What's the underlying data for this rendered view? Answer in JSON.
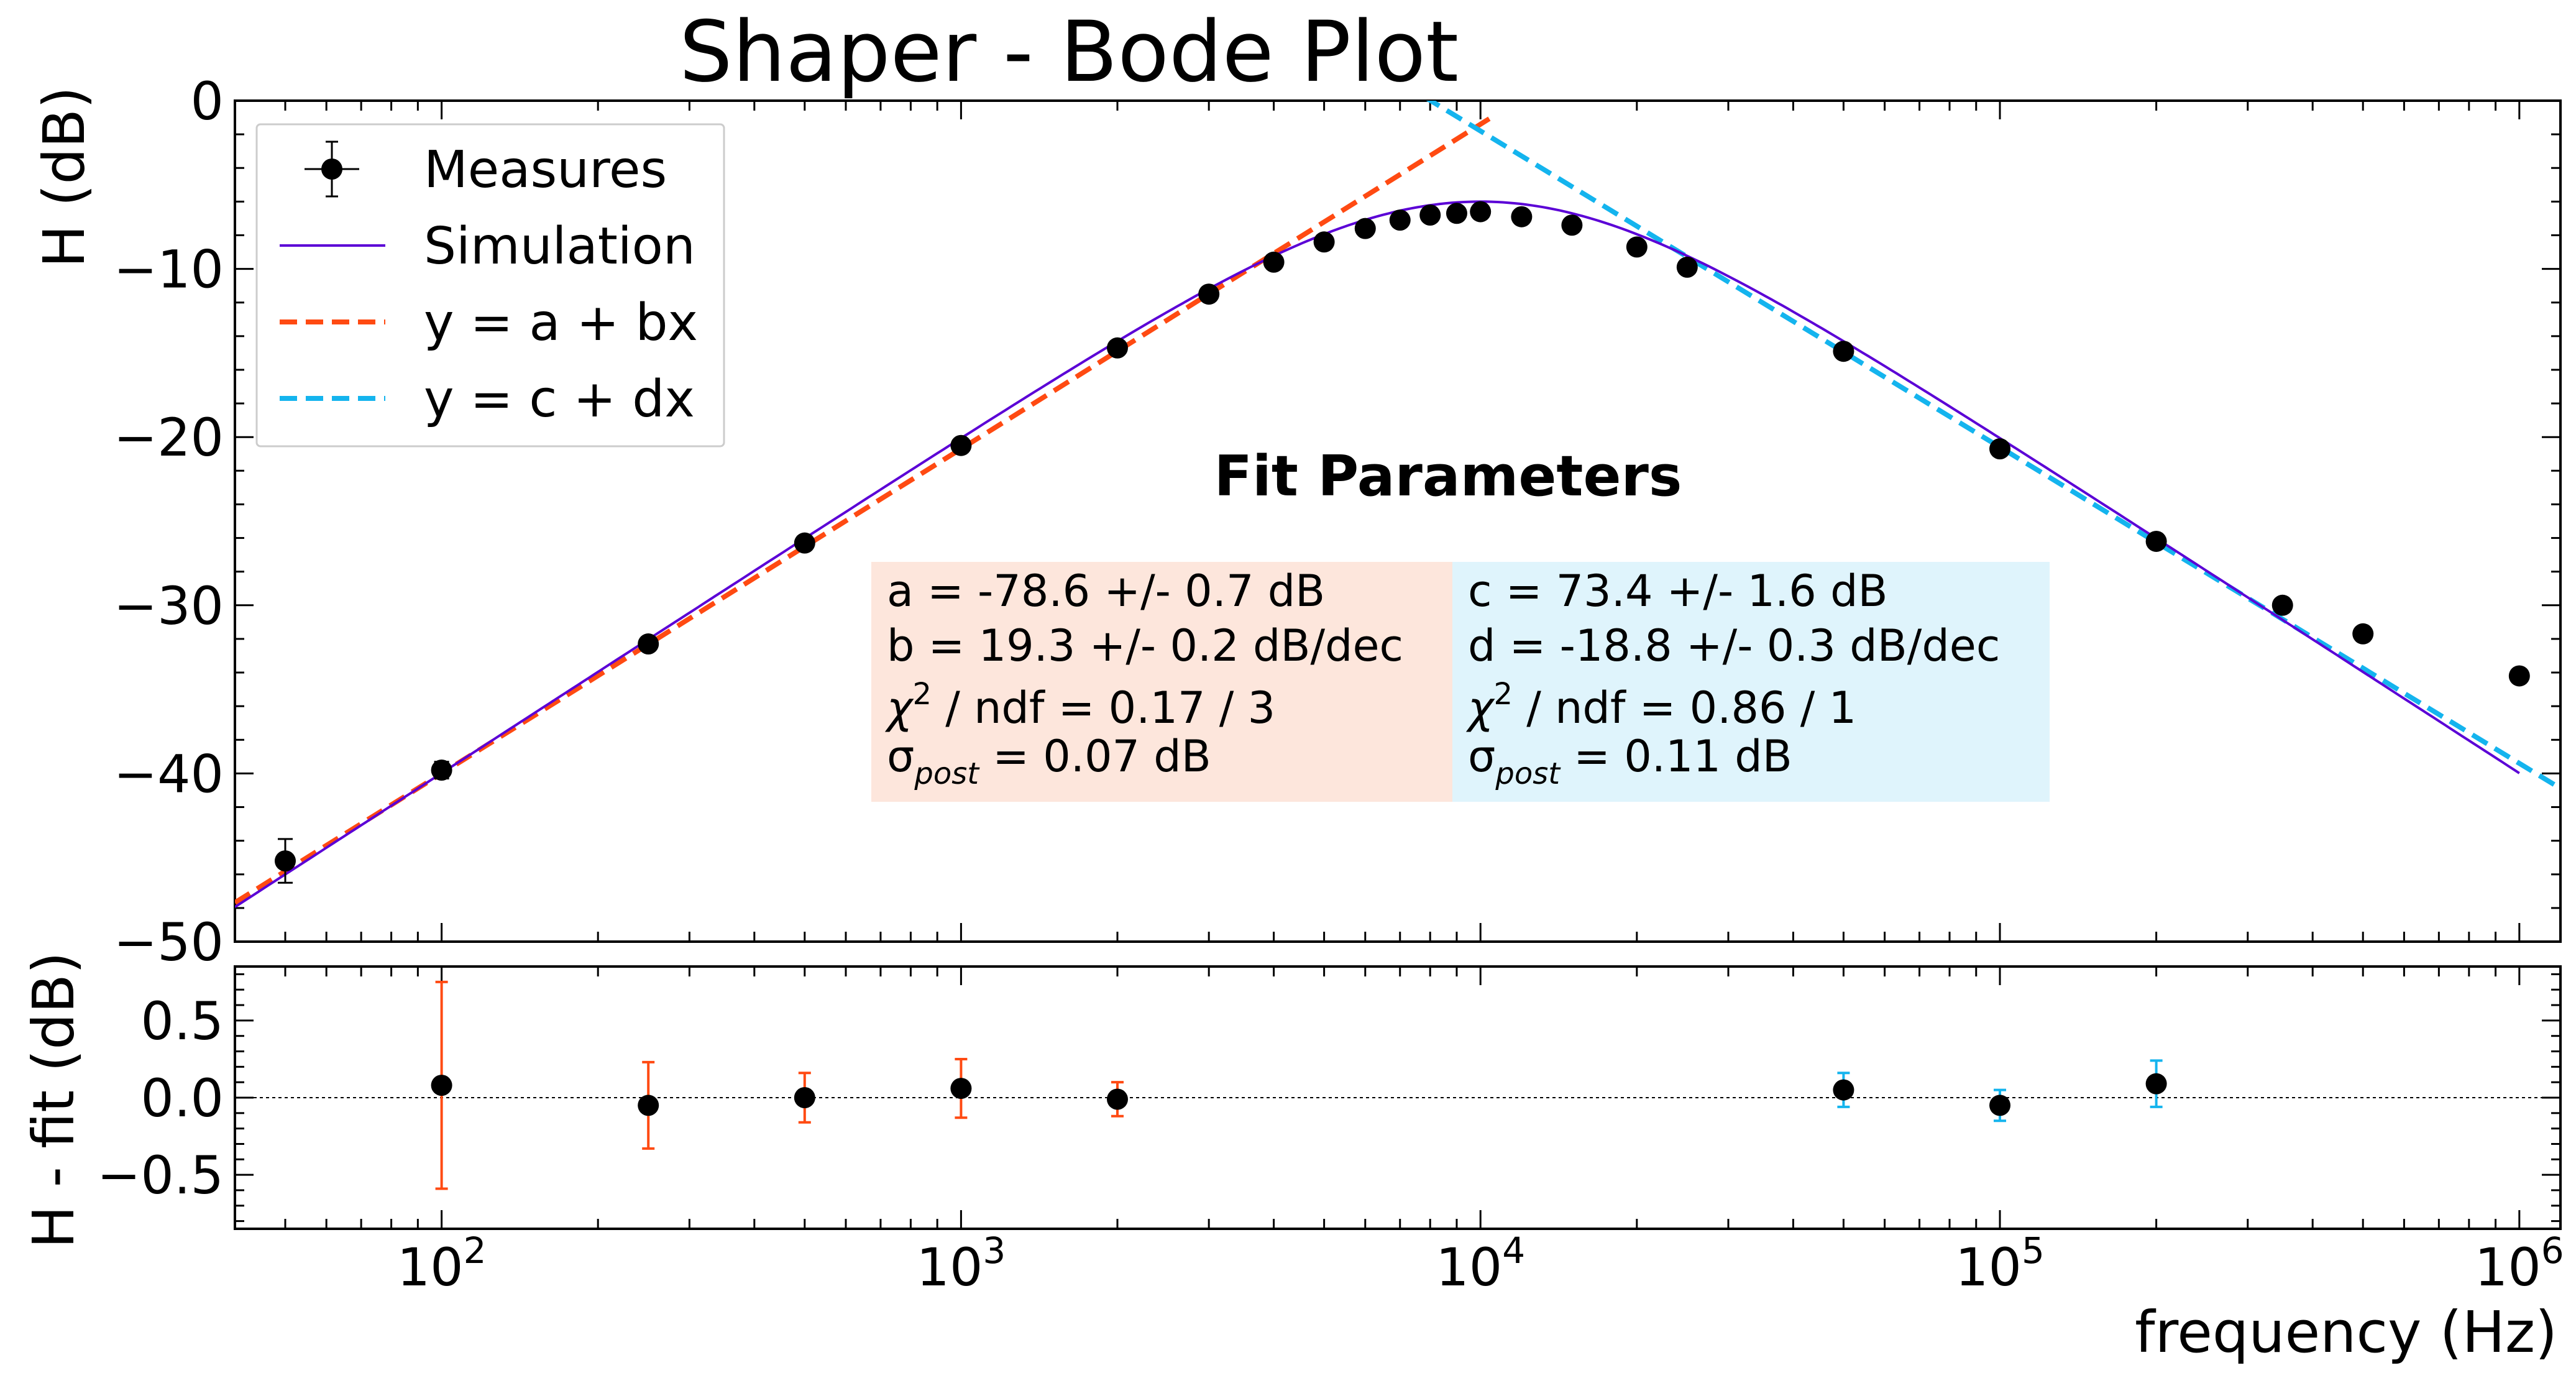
{
  "chart_data": {
    "type": "scatter",
    "title": "Shaper - Bode Plot",
    "xlabel": "frequency (Hz)",
    "xscale": "log",
    "xlim": [
      40,
      1200000
    ],
    "x_ticks": [
      {
        "value": 100,
        "base": "10",
        "exp": "2"
      },
      {
        "value": 1000,
        "base": "10",
        "exp": "3"
      },
      {
        "value": 10000,
        "base": "10",
        "exp": "4"
      },
      {
        "value": 100000,
        "base": "10",
        "exp": "5"
      },
      {
        "value": 1000000,
        "base": "10",
        "exp": "6"
      }
    ],
    "top_panel": {
      "ylabel": "H (dB)",
      "ylim": [
        -50,
        0
      ],
      "y_ticks": [
        0,
        -10,
        -20,
        -30,
        -40,
        -50
      ],
      "y_tick_labels": [
        "0",
        "−10",
        "−20",
        "−30",
        "−40",
        "−50"
      ]
    },
    "bottom_panel": {
      "ylabel": "H - fit (dB)",
      "ylim": [
        -0.85,
        0.85
      ],
      "y_ticks": [
        0.5,
        0.0,
        -0.5
      ],
      "y_tick_labels": [
        "0.5",
        "0.0",
        "−0.5"
      ],
      "zero_line": true
    },
    "legend": {
      "placement": "top-left",
      "entries": [
        {
          "label": "Measures",
          "style": "errorbar",
          "color": "#000000"
        },
        {
          "label": "Simulation",
          "style": "line",
          "color": "#5b00d6"
        },
        {
          "label": "y = a + bx",
          "style": "dashed",
          "color": "#ff4a12"
        },
        {
          "label": "y = c + dx",
          "style": "dashed",
          "color": "#14b4ee"
        }
      ]
    },
    "series": [
      {
        "name": "Measures",
        "color": "#000000",
        "x": [
          50,
          100,
          250,
          500,
          1000,
          2000,
          3000,
          4000,
          5000,
          6000,
          7000,
          8000,
          9000,
          10000,
          12000,
          15000,
          20000,
          25000,
          50000,
          100000,
          200000,
          350000,
          500000,
          1000000
        ],
        "y": [
          -45.2,
          -39.8,
          -32.3,
          -26.3,
          -20.5,
          -14.7,
          -11.5,
          -9.6,
          -8.4,
          -7.6,
          -7.1,
          -6.8,
          -6.7,
          -6.6,
          -6.9,
          -7.4,
          -8.7,
          -9.9,
          -14.9,
          -20.7,
          -26.2,
          -30.0,
          -31.7,
          -34.2
        ],
        "yerr": [
          1.3,
          0.5,
          0.25,
          0.2,
          0.15,
          0.15,
          0.15,
          0.15,
          0.15,
          0.15,
          0.15,
          0.15,
          0.15,
          0.15,
          0.15,
          0.15,
          0.15,
          0.15,
          0.15,
          0.15,
          0.15,
          0.15,
          0.15,
          0.15
        ]
      },
      {
        "name": "Simulation",
        "color": "#5b00d6",
        "model": "bandpass",
        "peak_frequency": 10000,
        "peak_gain_db": -6.0,
        "x_range": [
          40,
          1000000
        ]
      },
      {
        "name": "y = a + bx",
        "color": "#ff4a12",
        "a": -78.6,
        "b": 19.3,
        "x_range": [
          40,
          10500
        ]
      },
      {
        "name": "y = c + dx",
        "color": "#14b4ee",
        "c": 73.4,
        "d": -18.8,
        "x_range": [
          7800,
          1200000
        ]
      },
      {
        "name": "Residuals",
        "x": [
          100,
          250,
          500,
          1000,
          2000,
          50000,
          100000,
          200000
        ],
        "y": [
          0.08,
          -0.05,
          0.0,
          0.06,
          -0.01,
          0.05,
          -0.05,
          0.09
        ],
        "yerr": [
          0.67,
          0.28,
          0.16,
          0.19,
          0.11,
          0.11,
          0.1,
          0.15
        ],
        "errcolors": [
          "#ff4a12",
          "#ff4a12",
          "#ff4a12",
          "#ff4a12",
          "#ff4a12",
          "#14b4ee",
          "#14b4ee",
          "#14b4ee"
        ]
      }
    ],
    "annotation": {
      "title": "Fit Parameters",
      "left_box": {
        "color": "#fde6dc",
        "lines": [
          "a = -78.6 +/- 0.7 dB",
          "b = 19.3 +/- 0.2 dB/dec",
          "chi2_line",
          "sigma_line"
        ],
        "chi": {
          "symbol": "χ",
          "sup": "2",
          "rest": " / ndf = 0.17 / 3"
        },
        "sigma": {
          "symbol": "σ",
          "sub": "post",
          "rest": " = 0.07 dB"
        }
      },
      "right_box": {
        "color": "#dff4fc",
        "lines": [
          "c = 73.4 +/- 1.6 dB",
          "d = -18.8 +/- 0.3 dB/dec",
          "chi2_line",
          "sigma_line"
        ],
        "chi": {
          "symbol": "χ",
          "sup": "2",
          "rest": " / ndf = 0.86 / 1"
        },
        "sigma": {
          "symbol": "σ",
          "sub": "post",
          "rest": " = 0.11 dB"
        }
      }
    }
  }
}
